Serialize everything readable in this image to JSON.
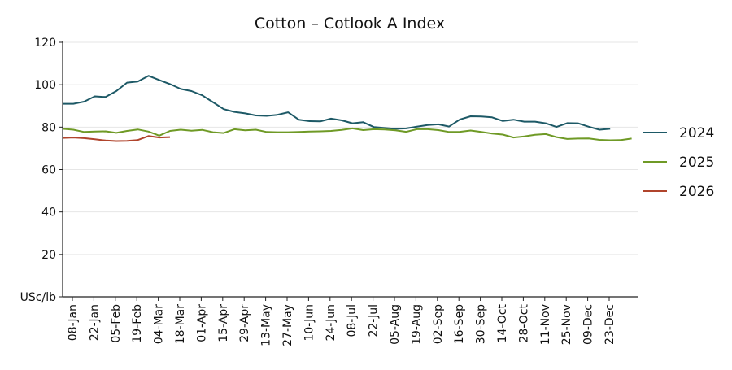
{
  "chart_data": {
    "type": "line",
    "title": "Cotton – Cotlook A Index",
    "ylabel": "USc/lb",
    "ylim": [
      0,
      120
    ],
    "yticks": [
      0,
      20,
      40,
      60,
      80,
      100,
      120
    ],
    "ytick_labels": [
      "USc/lb",
      "20",
      "40",
      "60",
      "80",
      "100",
      "120"
    ],
    "grid": "horizontal",
    "legend_position": "right",
    "x_tick_labels": [
      "08-Jan",
      "22-Jan",
      "05-Feb",
      "19-Feb",
      "04-Mar",
      "18-Mar",
      "01-Apr",
      "15-Apr",
      "29-Apr",
      "13-May",
      "27-May",
      "10-Jun",
      "24-Jun",
      "08-Jul",
      "22-Jul",
      "05-Aug",
      "19-Aug",
      "02-Sep",
      "16-Sep",
      "30-Sep",
      "14-Oct",
      "28-Oct",
      "11-Nov",
      "25-Nov",
      "09-Dec",
      "23-Dec"
    ],
    "series": [
      {
        "name": "2024",
        "color": "#1d5966",
        "values": [
          91,
          91,
          92,
          94.5,
          94.2,
          97,
          101,
          101.5,
          104.2,
          102.2,
          100.3,
          98,
          97,
          95,
          91.8,
          88.5,
          87.2,
          86.5,
          85.5,
          85.3,
          85.8,
          87,
          83.5,
          82.8,
          82.7,
          84,
          83.2,
          81.8,
          82.3,
          80,
          79.6,
          79.2,
          79.4,
          80.2,
          81,
          81.3,
          80.3,
          83.6,
          85.1,
          85,
          84.6,
          82.9,
          83.5,
          82.6,
          82.6,
          81.8,
          80.1,
          81.9,
          81.8,
          80.2,
          78.8,
          79.2
        ]
      },
      {
        "name": "2025",
        "color": "#6f9a26",
        "values": [
          79.2,
          78.8,
          77.7,
          77.9,
          78.0,
          77.3,
          78.2,
          78.9,
          77.9,
          76.0,
          78.2,
          78.8,
          78.3,
          78.7,
          77.6,
          77.2,
          79,
          78.5,
          78.8,
          77.7,
          77.6,
          77.6,
          77.7,
          77.9,
          78.0,
          78.2,
          78.7,
          79.4,
          78.6,
          79,
          78.9,
          78.5,
          77.8,
          79.0,
          79.0,
          78.6,
          77.7,
          77.8,
          78.4,
          77.7,
          77.0,
          76.5,
          75.1,
          75.6,
          76.4,
          76.7,
          75.3,
          74.4,
          74.6,
          74.7,
          74.0,
          73.8,
          73.9,
          74.6
        ]
      },
      {
        "name": "2026",
        "color": "#b0442c",
        "values": [
          74.9,
          75.1,
          74.8,
          74.3,
          73.7,
          73.4,
          73.5,
          73.9,
          75.8,
          75.1,
          75.3
        ]
      }
    ]
  }
}
